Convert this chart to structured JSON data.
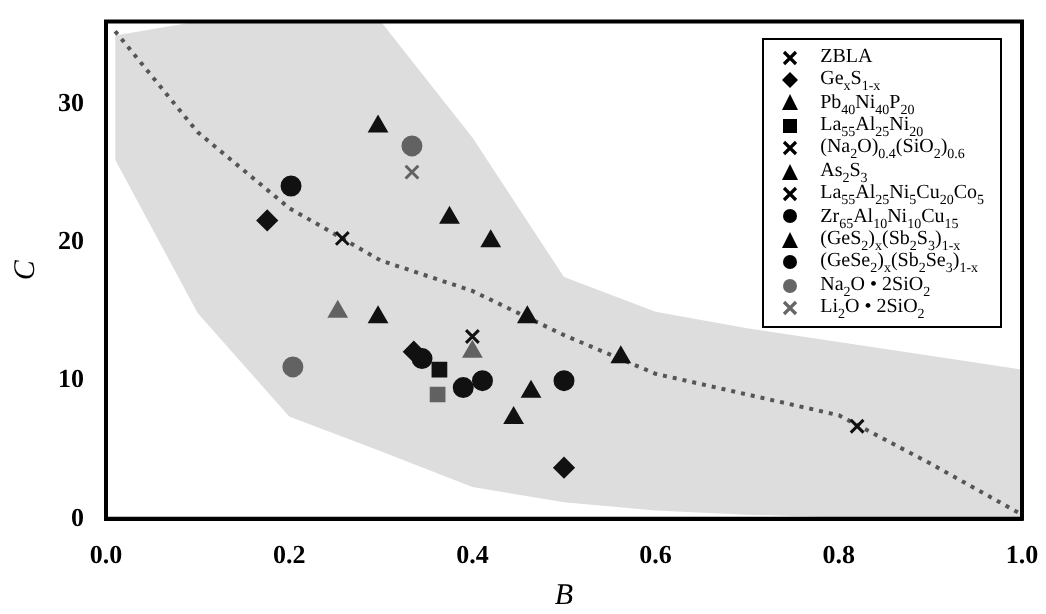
{
  "chart_data": {
    "type": "scatter",
    "xlabel": "B",
    "ylabel": "C",
    "xlim": [
      0,
      1
    ],
    "ylim": [
      0,
      36
    ],
    "xticks": [
      {
        "value": 0,
        "label": "0.0"
      },
      {
        "value": 0.2,
        "label": "0.2"
      },
      {
        "value": 0.4,
        "label": "0.4"
      },
      {
        "value": 0.6,
        "label": "0.6"
      },
      {
        "value": 0.8,
        "label": "0.8"
      },
      {
        "value": 1,
        "label": "1.0"
      }
    ],
    "yticks": [
      0,
      10,
      20,
      30
    ],
    "grid": false,
    "legend": "top right",
    "series": [
      {
        "name": "ZBLA",
        "color": "#000000",
        "marker": "cross",
        "x": [
          0.82
        ],
        "values": [
          6.7
        ]
      },
      {
        "name": "Ge$_{x}$S$_{1-x}$",
        "color": "#000000",
        "marker": "diamond",
        "x": [
          0.176,
          0.336,
          0.5
        ],
        "values": [
          21.6,
          12.1,
          3.7
        ]
      },
      {
        "name": "Pb$_{40}$Ni$_{40}$P$_{20}$",
        "color": "#000000",
        "colors": [
          "#000000",
          "#666666"
        ],
        "marker": "triangle",
        "x": [
          0.445,
          0.253
        ],
        "values": [
          7.3,
          15.0
        ]
      },
      {
        "name": "La$_{55}$Al$_{25}$Ni$_{20}$",
        "color": "#000000",
        "colors": [
          "#000000",
          "#666666"
        ],
        "marker": "square",
        "x": [
          0.364,
          0.362
        ],
        "values": [
          10.8,
          9.0
        ]
      },
      {
        "name": "(Na$_{2}$O)$_{0.4}$(SiO$_{2}$)$_{0.6}$",
        "color": "#000000",
        "marker": "cross",
        "x": [
          0.4
        ],
        "values": [
          13.2
        ]
      },
      {
        "name": "As$_{2}$S$_{3}$",
        "color": "#000000",
        "colors": [
          "#000000",
          "#666666"
        ],
        "marker": "triangle",
        "x": [
          0.297,
          0.4
        ],
        "values": [
          14.6,
          12.1
        ]
      },
      {
        "name": "La$_{55}$Al$_{25}$Ni$_{5}$Cu$_{20}$Co$_{5}$",
        "color": "#000000",
        "marker": "cross",
        "x": [
          0.258
        ],
        "values": [
          20.3
        ]
      },
      {
        "name": "Zr$_{65}$Al$_{10}$Ni$_{10}$Cu$_{15}$",
        "color": "#000000",
        "colors": [
          "#000000",
          "#666666"
        ],
        "marker": "circle",
        "x": [
          0.202,
          0.204
        ],
        "values": [
          24.1,
          11.0
        ]
      },
      {
        "name": "(GeS$_{2}$)$_{x}$(Sb$_{2}$S$_{3}$)$_{1-x}$",
        "color": "#000000",
        "marker": "triangle",
        "x": [
          0.297,
          0.375,
          0.42,
          0.46,
          0.464,
          0.562
        ],
        "values": [
          28.4,
          21.8,
          20.1,
          14.6,
          9.2,
          11.7
        ]
      },
      {
        "name": "(GeSe$_{2}$)$_{x}$(Sb$_{2}$Se$_{3}$)$_{1-x}$",
        "color": "#000000",
        "marker": "circle",
        "x": [
          0.345,
          0.39,
          0.411,
          0.5
        ],
        "values": [
          11.6,
          9.5,
          10.0,
          10.0
        ]
      },
      {
        "name": "Na$_{2}$O • 2SiO$_{2}$",
        "color": "#666666",
        "marker": "circle",
        "x": [
          0.334
        ],
        "values": [
          27.0
        ]
      },
      {
        "name": "Li$_{2}$O • 2SiO$_{2}$",
        "color": "#666666",
        "marker": "cross",
        "x": [
          0.334
        ],
        "values": [
          25.1
        ]
      },
      {
        "type": "line",
        "color": "#555555",
        "line_style": "dotted",
        "marker": "none",
        "x": [
          0.01,
          0.1,
          0.2,
          0.3,
          0.4,
          0.5,
          0.6,
          0.7,
          0.8,
          0.9,
          1.0
        ],
        "values": [
          35.3,
          28,
          22.5,
          18.7,
          16.5,
          13.3,
          10.5,
          9.0,
          7.5,
          4.0,
          0.3
        ],
        "lower": [
          26,
          14.9,
          7.4,
          4.9,
          2.3,
          1.2,
          0.6,
          0.3,
          0.1,
          0,
          0
        ],
        "upper": [
          35,
          36,
          36,
          36,
          27.6,
          17.5,
          15,
          13.8,
          12.8,
          11.8,
          10.8
        ]
      }
    ]
  }
}
